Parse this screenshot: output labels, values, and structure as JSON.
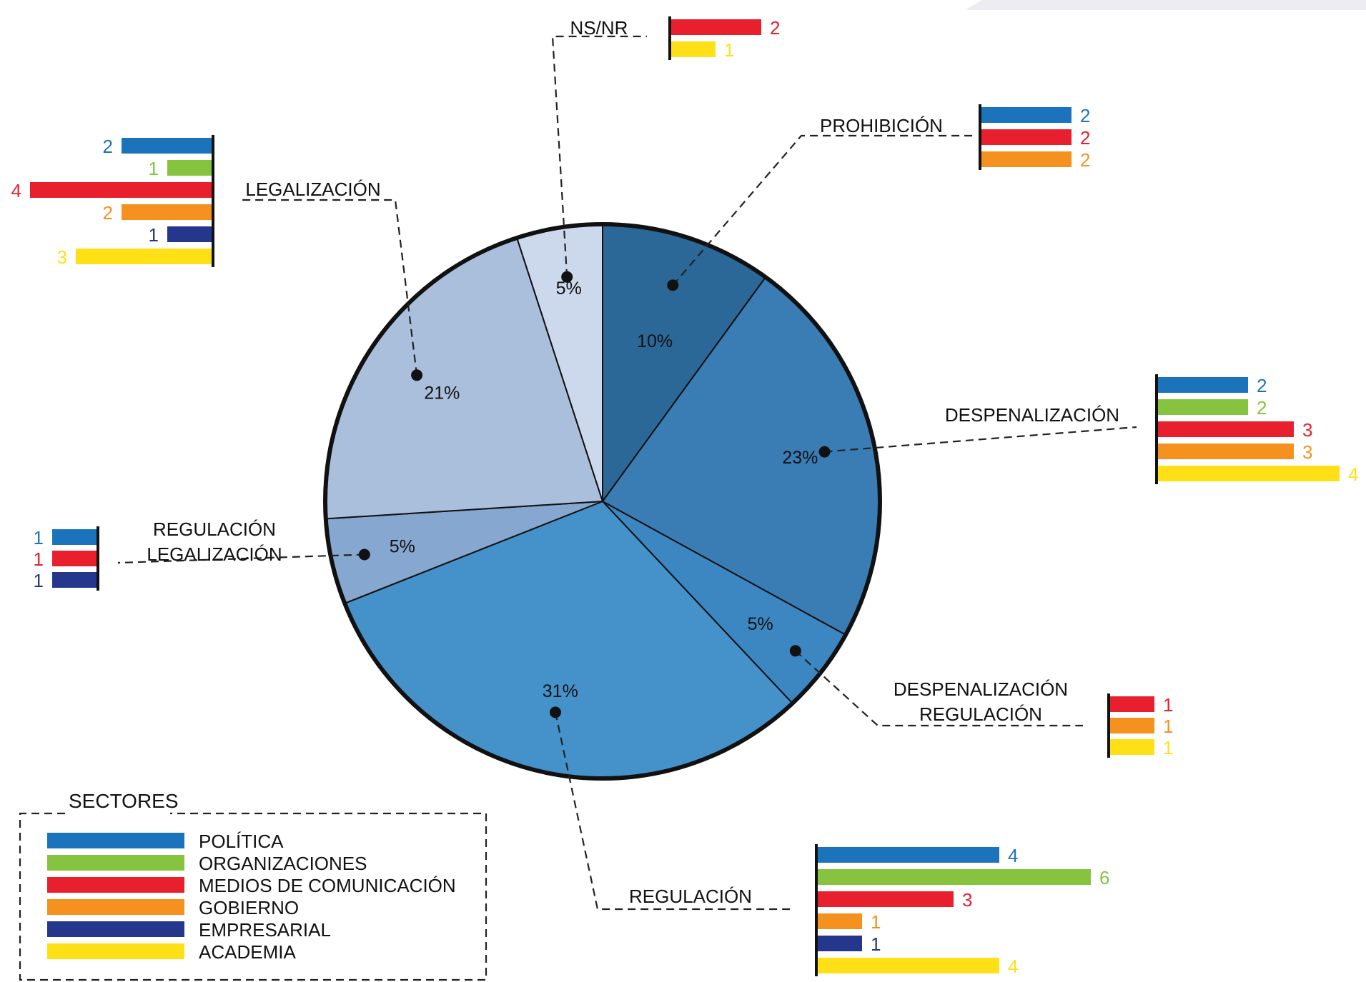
{
  "colors": {
    "politica": "#1b74bb",
    "organizaciones": "#86c440",
    "medios": "#e8202e",
    "gobierno": "#f5921f",
    "empresarial": "#25378d",
    "academia": "#ffe017"
  },
  "chart_data": {
    "type": "pie",
    "slices": [
      {
        "id": "prohibicion",
        "label_lines": [
          "PROHIBICIÓN"
        ],
        "percent_label": "10%",
        "value": 10,
        "color": "#2b6898"
      },
      {
        "id": "despenalizacion",
        "label_lines": [
          "DESPENALIZACIÓN"
        ],
        "percent_label": "23%",
        "value": 23,
        "color": "#3a7db5"
      },
      {
        "id": "despenalizacion-regulacion",
        "label_lines": [
          "DESPENALIZACIÓN",
          "REGULACIÓN"
        ],
        "percent_label": "5%",
        "value": 5,
        "color": "#3c86c2"
      },
      {
        "id": "regulacion",
        "label_lines": [
          "REGULACIÓN"
        ],
        "percent_label": "31%",
        "value": 31,
        "color": "#4592ca"
      },
      {
        "id": "regulacion-legalizacion",
        "label_lines": [
          "REGULACIÓN",
          "LEGALIZACIÓN"
        ],
        "percent_label": "5%",
        "value": 5,
        "color": "#86a7cf"
      },
      {
        "id": "legalizacion",
        "label_lines": [
          "LEGALIZACIÓN"
        ],
        "percent_label": "21%",
        "value": 21,
        "color": "#aabfdc"
      },
      {
        "id": "nsnr",
        "label_lines": [
          "NS/NR"
        ],
        "percent_label": "5%",
        "value": 5,
        "color": "#ccd8ec"
      }
    ],
    "sector_bars": [
      {
        "category": "nsnr",
        "bars": [
          {
            "sector": "medios",
            "value": 2,
            "label": "2"
          },
          {
            "sector": "academia",
            "value": 1,
            "label": "1"
          }
        ]
      },
      {
        "category": "prohibicion",
        "bars": [
          {
            "sector": "politica",
            "value": 2,
            "label": "2"
          },
          {
            "sector": "medios",
            "value": 2,
            "label": "2"
          },
          {
            "sector": "gobierno",
            "value": 2,
            "label": "2"
          }
        ]
      },
      {
        "category": "legalizacion",
        "bars": [
          {
            "sector": "politica",
            "value": 2,
            "label": "2"
          },
          {
            "sector": "organizaciones",
            "value": 1,
            "label": "1"
          },
          {
            "sector": "medios",
            "value": 4,
            "label": "4"
          },
          {
            "sector": "gobierno",
            "value": 2,
            "label": "2"
          },
          {
            "sector": "empresarial",
            "value": 1,
            "label": "1"
          },
          {
            "sector": "academia",
            "value": 3,
            "label": "3"
          }
        ]
      },
      {
        "category": "despenalizacion",
        "bars": [
          {
            "sector": "politica",
            "value": 2,
            "label": "2"
          },
          {
            "sector": "organizaciones",
            "value": 2,
            "label": "2"
          },
          {
            "sector": "medios",
            "value": 3,
            "label": "3"
          },
          {
            "sector": "gobierno",
            "value": 3,
            "label": "3"
          },
          {
            "sector": "academia",
            "value": 4,
            "label": "4"
          }
        ]
      },
      {
        "category": "regulacion-legalizacion",
        "bars": [
          {
            "sector": "politica",
            "value": 1,
            "label": "1"
          },
          {
            "sector": "medios",
            "value": 1,
            "label": "1"
          },
          {
            "sector": "empresarial",
            "value": 1,
            "label": "1"
          }
        ]
      },
      {
        "category": "despenalizacion-regulacion",
        "bars": [
          {
            "sector": "medios",
            "value": 1,
            "label": "1"
          },
          {
            "sector": "gobierno",
            "value": 1,
            "label": "1"
          },
          {
            "sector": "academia",
            "value": 1,
            "label": "1"
          }
        ]
      },
      {
        "category": "regulacion",
        "bars": [
          {
            "sector": "politica",
            "value": 4,
            "label": "4"
          },
          {
            "sector": "organizaciones",
            "value": 6,
            "label": "6"
          },
          {
            "sector": "medios",
            "value": 3,
            "label": "3"
          },
          {
            "sector": "gobierno",
            "value": 1,
            "label": "1"
          },
          {
            "sector": "empresarial",
            "value": 1,
            "label": "1"
          },
          {
            "sector": "academia",
            "value": 4,
            "label": "4"
          }
        ]
      }
    ],
    "legend": {
      "title": "SECTORES",
      "items": [
        {
          "sector": "politica",
          "label": "POLÍTICA"
        },
        {
          "sector": "organizaciones",
          "label": "ORGANIZACIONES"
        },
        {
          "sector": "medios",
          "label": "MEDIOS DE COMUNICACIÓN"
        },
        {
          "sector": "gobierno",
          "label": "GOBIERNO"
        },
        {
          "sector": "empresarial",
          "label": "EMPRESARIAL"
        },
        {
          "sector": "academia",
          "label": "ACADEMIA"
        }
      ]
    }
  }
}
